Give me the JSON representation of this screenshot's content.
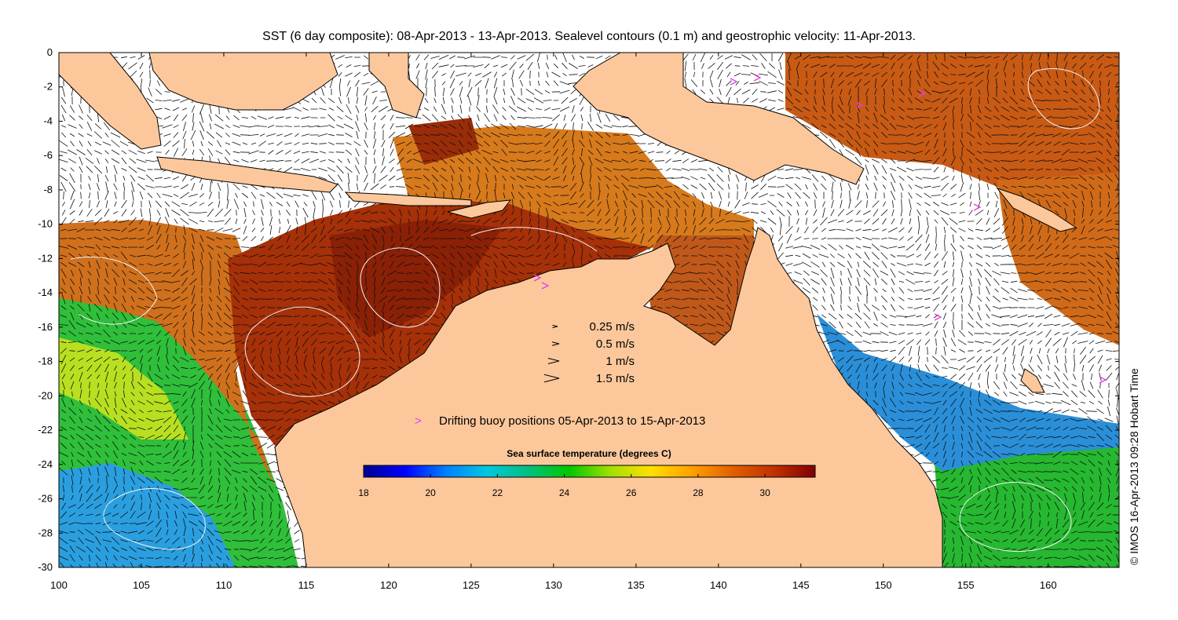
{
  "title": "SST (6 day composite): 08-Apr-2013 - 13-Apr-2013. Sealevel contours (0.1 m) and geostrophic velocity: 11-Apr-2013.",
  "axes": {
    "x_ticks": [
      "100",
      "105",
      "110",
      "115",
      "120",
      "125",
      "130",
      "135",
      "140",
      "145",
      "150",
      "155",
      "160"
    ],
    "y_ticks": [
      "0",
      "-2",
      "-4",
      "-6",
      "-8",
      "-10",
      "-12",
      "-14",
      "-16",
      "-18",
      "-20",
      "-22",
      "-24",
      "-26",
      "-28",
      "-30"
    ],
    "lon_range": [
      100,
      164.3
    ],
    "lat_range": [
      -30,
      0
    ]
  },
  "velocity_legend": [
    {
      "label": "0.25 m/s",
      "speed": 0.25
    },
    {
      "label": "0.5 m/s",
      "speed": 0.5
    },
    {
      "label": "1 m/s",
      "speed": 1
    },
    {
      "label": "1.5 m/s",
      "speed": 1.5
    }
  ],
  "buoy_legend": {
    "label": "Drifting buoy positions 05-Apr-2013 to 15-Apr-2013",
    "symbol": ">",
    "color": "#e040e0"
  },
  "colorbar": {
    "title": "Sea surface temperature (degrees C)",
    "ticks": [
      "18",
      "20",
      "22",
      "24",
      "26",
      "28",
      "30"
    ],
    "range": [
      18,
      31.5
    ],
    "colors": [
      "#00008f",
      "#0000ff",
      "#0080ff",
      "#00c8e0",
      "#00c080",
      "#00c800",
      "#a0e000",
      "#ffe000",
      "#ffa000",
      "#e06000",
      "#c03000",
      "#800000"
    ]
  },
  "credit": "© IMOS 16-Apr-2013 09:28 Hobart Time",
  "colors": {
    "land": "#fcc89b",
    "warm": "#b03a08",
    "hot": "#8c2206",
    "orange": "#d9751a",
    "cool_green": "#30c030",
    "cool_blue": "#2aa0e0"
  }
}
